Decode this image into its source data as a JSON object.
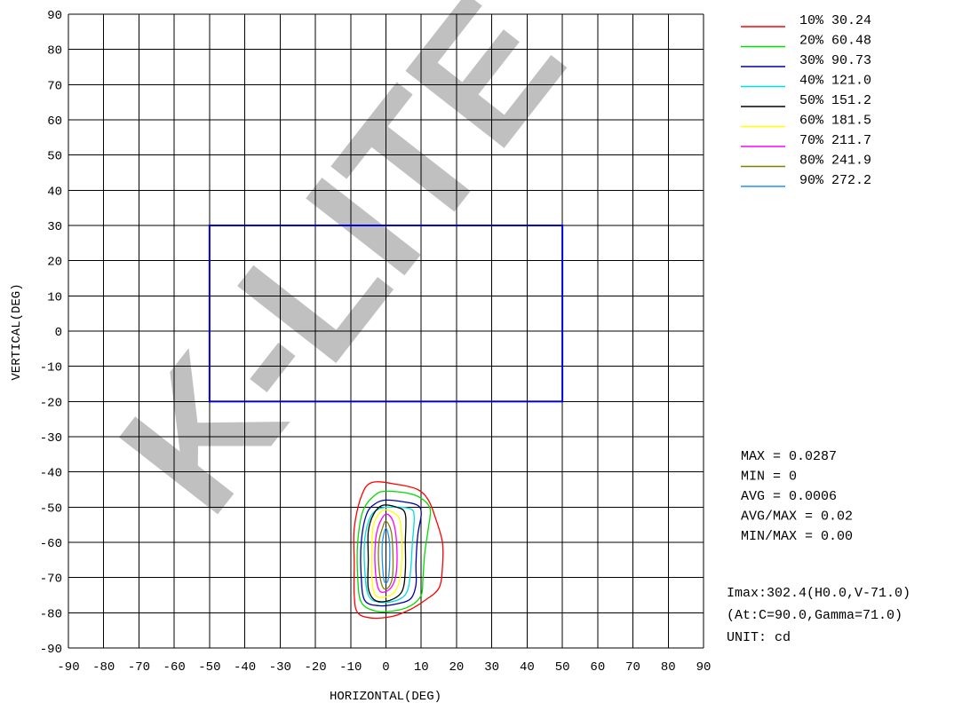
{
  "chart_data": {
    "type": "contour",
    "xlabel": "HORIZONTAL(DEG)",
    "ylabel": "VERTICAL(DEG)",
    "xlim": [
      -90,
      90
    ],
    "ylim": [
      -90,
      90
    ],
    "x_ticks": [
      "-90",
      "-80",
      "-70",
      "-60",
      "-50",
      "-40",
      "-30",
      "-20",
      "-10",
      "0",
      "10",
      "20",
      "30",
      "40",
      "50",
      "60",
      "70",
      "80",
      "90"
    ],
    "y_ticks": [
      "90",
      "80",
      "70",
      "60",
      "50",
      "40",
      "30",
      "20",
      "10",
      "0",
      "-10",
      "-20",
      "-30",
      "-40",
      "-50",
      "-60",
      "-70",
      "-80",
      "-90"
    ],
    "grid": true,
    "grid_step_deg": 10,
    "watermark": "K-LITE",
    "target_rect": {
      "x": [
        -50,
        50
      ],
      "y": [
        -20,
        30
      ],
      "color": "#0000dd"
    },
    "legend_position": "top-right",
    "legend": [
      {
        "label": "10% 30.24",
        "color": "#ff0000"
      },
      {
        "label": "20% 60.48",
        "color": "#00dd00"
      },
      {
        "label": "30% 90.73",
        "color": "#0000aa"
      },
      {
        "label": "40% 121.0",
        "color": "#00dddd"
      },
      {
        "label": "50% 151.2",
        "color": "#000000"
      },
      {
        "label": "60% 181.5",
        "color": "#ffff00"
      },
      {
        "label": "70% 211.7",
        "color": "#ff00ff"
      },
      {
        "label": "80% 241.9",
        "color": "#808000"
      },
      {
        "label": "90% 272.2",
        "color": "#1e90ff"
      }
    ],
    "contours": [
      {
        "level": "10%",
        "color": "#ff0000",
        "points": [
          [
            -4,
            -43
          ],
          [
            3,
            -43.5
          ],
          [
            9,
            -45
          ],
          [
            12,
            -48
          ],
          [
            14,
            -53
          ],
          [
            16,
            -60
          ],
          [
            16,
            -67
          ],
          [
            15,
            -73
          ],
          [
            11,
            -76.5
          ],
          [
            7,
            -79
          ],
          [
            2,
            -81
          ],
          [
            -4,
            -81.5
          ],
          [
            -8,
            -80
          ],
          [
            -9,
            -75
          ],
          [
            -9,
            -66
          ],
          [
            -9,
            -56
          ],
          [
            -7,
            -47
          ]
        ]
      },
      {
        "level": "20%",
        "color": "#00dd00",
        "points": [
          [
            -3,
            -46.5
          ],
          [
            0,
            -45.5
          ],
          [
            6,
            -46
          ],
          [
            10,
            -47.5
          ],
          [
            12.5,
            -50.5
          ],
          [
            12,
            -56
          ],
          [
            11,
            -63
          ],
          [
            10.5,
            -70
          ],
          [
            10,
            -75
          ],
          [
            7,
            -78
          ],
          [
            2,
            -79.5
          ],
          [
            -3,
            -79.5
          ],
          [
            -7,
            -77
          ],
          [
            -8,
            -70
          ],
          [
            -8,
            -60
          ],
          [
            -6.5,
            -51
          ]
        ]
      },
      {
        "level": "30%",
        "color": "#0000aa",
        "points": [
          [
            -3,
            -49
          ],
          [
            0,
            -48
          ],
          [
            5,
            -48.5
          ],
          [
            9,
            -49.5
          ],
          [
            10,
            -52
          ],
          [
            9,
            -58
          ],
          [
            8.5,
            -66
          ],
          [
            8.5,
            -72
          ],
          [
            7,
            -76
          ],
          [
            3,
            -77.5
          ],
          [
            -2,
            -78
          ],
          [
            -6,
            -76.5
          ],
          [
            -7,
            -70
          ],
          [
            -7,
            -60
          ],
          [
            -5.5,
            -52
          ]
        ]
      },
      {
        "level": "40%",
        "color": "#00dddd",
        "points": [
          [
            -2,
            -50.5
          ],
          [
            2,
            -50
          ],
          [
            7,
            -50.5
          ],
          [
            8,
            -53
          ],
          [
            7.5,
            -60
          ],
          [
            7,
            -68
          ],
          [
            6,
            -74
          ],
          [
            3,
            -76.5
          ],
          [
            -2,
            -77
          ],
          [
            -5,
            -75
          ],
          [
            -6,
            -68
          ],
          [
            -6,
            -59
          ],
          [
            -4.5,
            -53
          ]
        ]
      },
      {
        "level": "50%",
        "color": "#000000",
        "points": [
          [
            -1,
            -49.5
          ],
          [
            3,
            -50
          ],
          [
            5.5,
            -52
          ],
          [
            5.5,
            -60
          ],
          [
            5.5,
            -68
          ],
          [
            4.5,
            -74
          ],
          [
            1,
            -76.5
          ],
          [
            -3,
            -76.5
          ],
          [
            -5,
            -73
          ],
          [
            -5,
            -65
          ],
          [
            -5,
            -57
          ],
          [
            -3.5,
            -52
          ]
        ]
      },
      {
        "level": "60%",
        "color": "#ffff00",
        "points": [
          [
            -1,
            -51
          ],
          [
            2,
            -51.5
          ],
          [
            4,
            -54
          ],
          [
            4.5,
            -62
          ],
          [
            4,
            -70
          ],
          [
            2.5,
            -74
          ],
          [
            0,
            -75.5
          ],
          [
            -3,
            -75
          ],
          [
            -4,
            -70
          ],
          [
            -4,
            -62
          ],
          [
            -3.5,
            -55
          ]
        ]
      },
      {
        "level": "70%",
        "color": "#ff00ff",
        "points": [
          [
            0,
            -52
          ],
          [
            2,
            -54
          ],
          [
            3,
            -60
          ],
          [
            3,
            -68
          ],
          [
            2,
            -72
          ],
          [
            0,
            -74
          ],
          [
            -2,
            -73.5
          ],
          [
            -3,
            -68
          ],
          [
            -3,
            -60
          ],
          [
            -2,
            -55
          ]
        ]
      },
      {
        "level": "80%",
        "color": "#808000",
        "points": [
          [
            0,
            -54
          ],
          [
            1.5,
            -57
          ],
          [
            2,
            -64
          ],
          [
            1.8,
            -70
          ],
          [
            0.5,
            -73
          ],
          [
            -1,
            -72.5
          ],
          [
            -2,
            -67
          ],
          [
            -2,
            -60
          ],
          [
            -1,
            -56
          ]
        ]
      },
      {
        "level": "90%",
        "color": "#1e90ff",
        "points": [
          [
            0,
            -56
          ],
          [
            1,
            -60
          ],
          [
            1,
            -67
          ],
          [
            0.5,
            -71
          ],
          [
            -0.5,
            -71
          ],
          [
            -1,
            -66
          ],
          [
            -1,
            -60
          ]
        ]
      }
    ],
    "stats": [
      "MAX = 0.0287",
      "MIN = 0",
      "AVG = 0.0006",
      "AVG/MAX = 0.02",
      "MIN/MAX = 0.00"
    ],
    "imax_lines": [
      "Imax:302.4(H0.0,V-71.0)",
      " (At:C=90.0,Gamma=71.0)",
      "UNIT: cd"
    ]
  }
}
